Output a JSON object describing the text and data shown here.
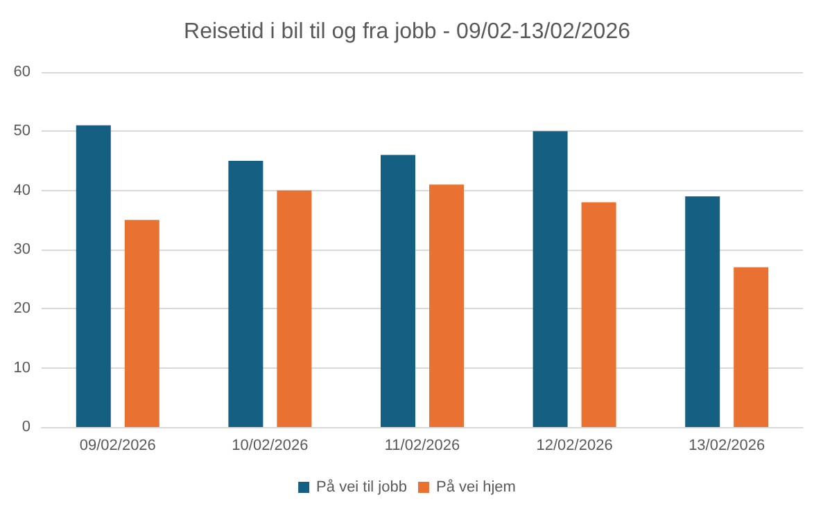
{
  "chart_data": {
    "type": "bar",
    "title": "Reisetid i bil til og fra jobb - 09/02-13/02/2026",
    "categories": [
      "09/02/2026",
      "10/02/2026",
      "11/02/2026",
      "12/02/2026",
      "13/02/2026"
    ],
    "series": [
      {
        "name": "På vei til jobb",
        "color": "#156082",
        "values": [
          51,
          45,
          46,
          50,
          39
        ]
      },
      {
        "name": "På vei hjem",
        "color": "#e97132",
        "values": [
          35,
          40,
          41,
          38,
          27
        ]
      }
    ],
    "ylim": [
      0,
      60
    ],
    "yticks": [
      0,
      10,
      20,
      30,
      40,
      50,
      60
    ],
    "grid": "y",
    "legend": "bottom"
  }
}
